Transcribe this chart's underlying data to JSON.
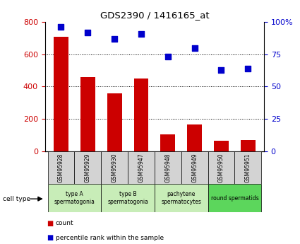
{
  "title": "GDS2390 / 1416165_at",
  "samples": [
    "GSM95928",
    "GSM95929",
    "GSM95930",
    "GSM95947",
    "GSM95948",
    "GSM95949",
    "GSM95950",
    "GSM95951"
  ],
  "counts": [
    710,
    460,
    360,
    450,
    105,
    165,
    65,
    70
  ],
  "percentiles": [
    96,
    92,
    87,
    91,
    73,
    80,
    63,
    64
  ],
  "cell_types": [
    {
      "label": "type A\nspermatogonia",
      "span": [
        0,
        2
      ],
      "color": "#c8edb8"
    },
    {
      "label": "type B\nspermatogonia",
      "span": [
        2,
        4
      ],
      "color": "#c8edb8"
    },
    {
      "label": "pachytene\nspermatocytes",
      "span": [
        4,
        6
      ],
      "color": "#c8edb8"
    },
    {
      "label": "round spermatids",
      "span": [
        6,
        8
      ],
      "color": "#5cd65c"
    }
  ],
  "bar_color": "#cc0000",
  "dot_color": "#0000cc",
  "left_ylim": [
    0,
    800
  ],
  "right_ylim": [
    0,
    100
  ],
  "left_yticks": [
    0,
    200,
    400,
    600,
    800
  ],
  "right_yticks": [
    0,
    25,
    50,
    75,
    100
  ],
  "right_yticklabels": [
    "0",
    "25",
    "50",
    "75",
    "100%"
  ],
  "sample_box_color": "#d3d3d3",
  "grid_yticks": [
    200,
    400,
    600
  ],
  "dot_size": 30
}
